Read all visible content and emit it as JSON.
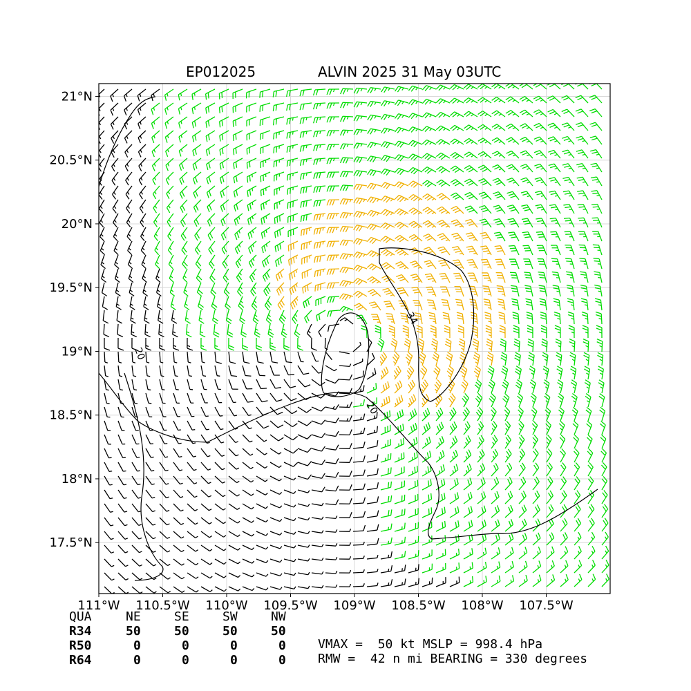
{
  "title": {
    "storm_id": "EP012025",
    "storm_desc": "ALVIN 2025 31 May 03UTC"
  },
  "chart_data": {
    "type": "wind_barbs",
    "title": "EP012025    ALVIN 2025 31 May 03UTC",
    "x_ticks": [
      "111°W",
      "110.5°W",
      "110°W",
      "109.5°W",
      "109°W",
      "108.5°W",
      "108°W",
      "107.5°W"
    ],
    "x_tick_values": [
      -111,
      -110.5,
      -110,
      -109.5,
      -109,
      -108.5,
      -108,
      -107.5
    ],
    "y_ticks": [
      "17.5°N",
      "18°N",
      "18.5°N",
      "19°N",
      "19.5°N",
      "20°N",
      "20.5°N",
      "21°N"
    ],
    "y_tick_values": [
      17.5,
      18,
      18.5,
      19,
      19.5,
      20,
      20.5,
      21
    ],
    "xlim": [
      -111.0,
      -107.0
    ],
    "ylim": [
      17.1,
      21.1
    ],
    "grid": true,
    "center": {
      "lon": -109.1,
      "lat": 19.1
    },
    "vmax_kt": 50,
    "rmw_nmi": 42,
    "contour_labels": [
      "34",
      "20",
      "20"
    ],
    "barb_colors": {
      "low": "#000000",
      "ts": "#00dd00",
      "strong": "#f0b000"
    }
  },
  "quadrant_table": {
    "header": [
      "QUA",
      "NE",
      "SE",
      "SW",
      "NW"
    ],
    "rows": [
      [
        "R34",
        "50",
        "50",
        "50",
        "50"
      ],
      [
        "R50",
        "0",
        "0",
        "0",
        "0"
      ],
      [
        "R64",
        "0",
        "0",
        "0",
        "0"
      ]
    ]
  },
  "stats": {
    "line1": "VMAX =  50 kt MSLP = 998.4 hPa",
    "line2": "RMW =  42 n mi BEARING = 330 degrees"
  }
}
